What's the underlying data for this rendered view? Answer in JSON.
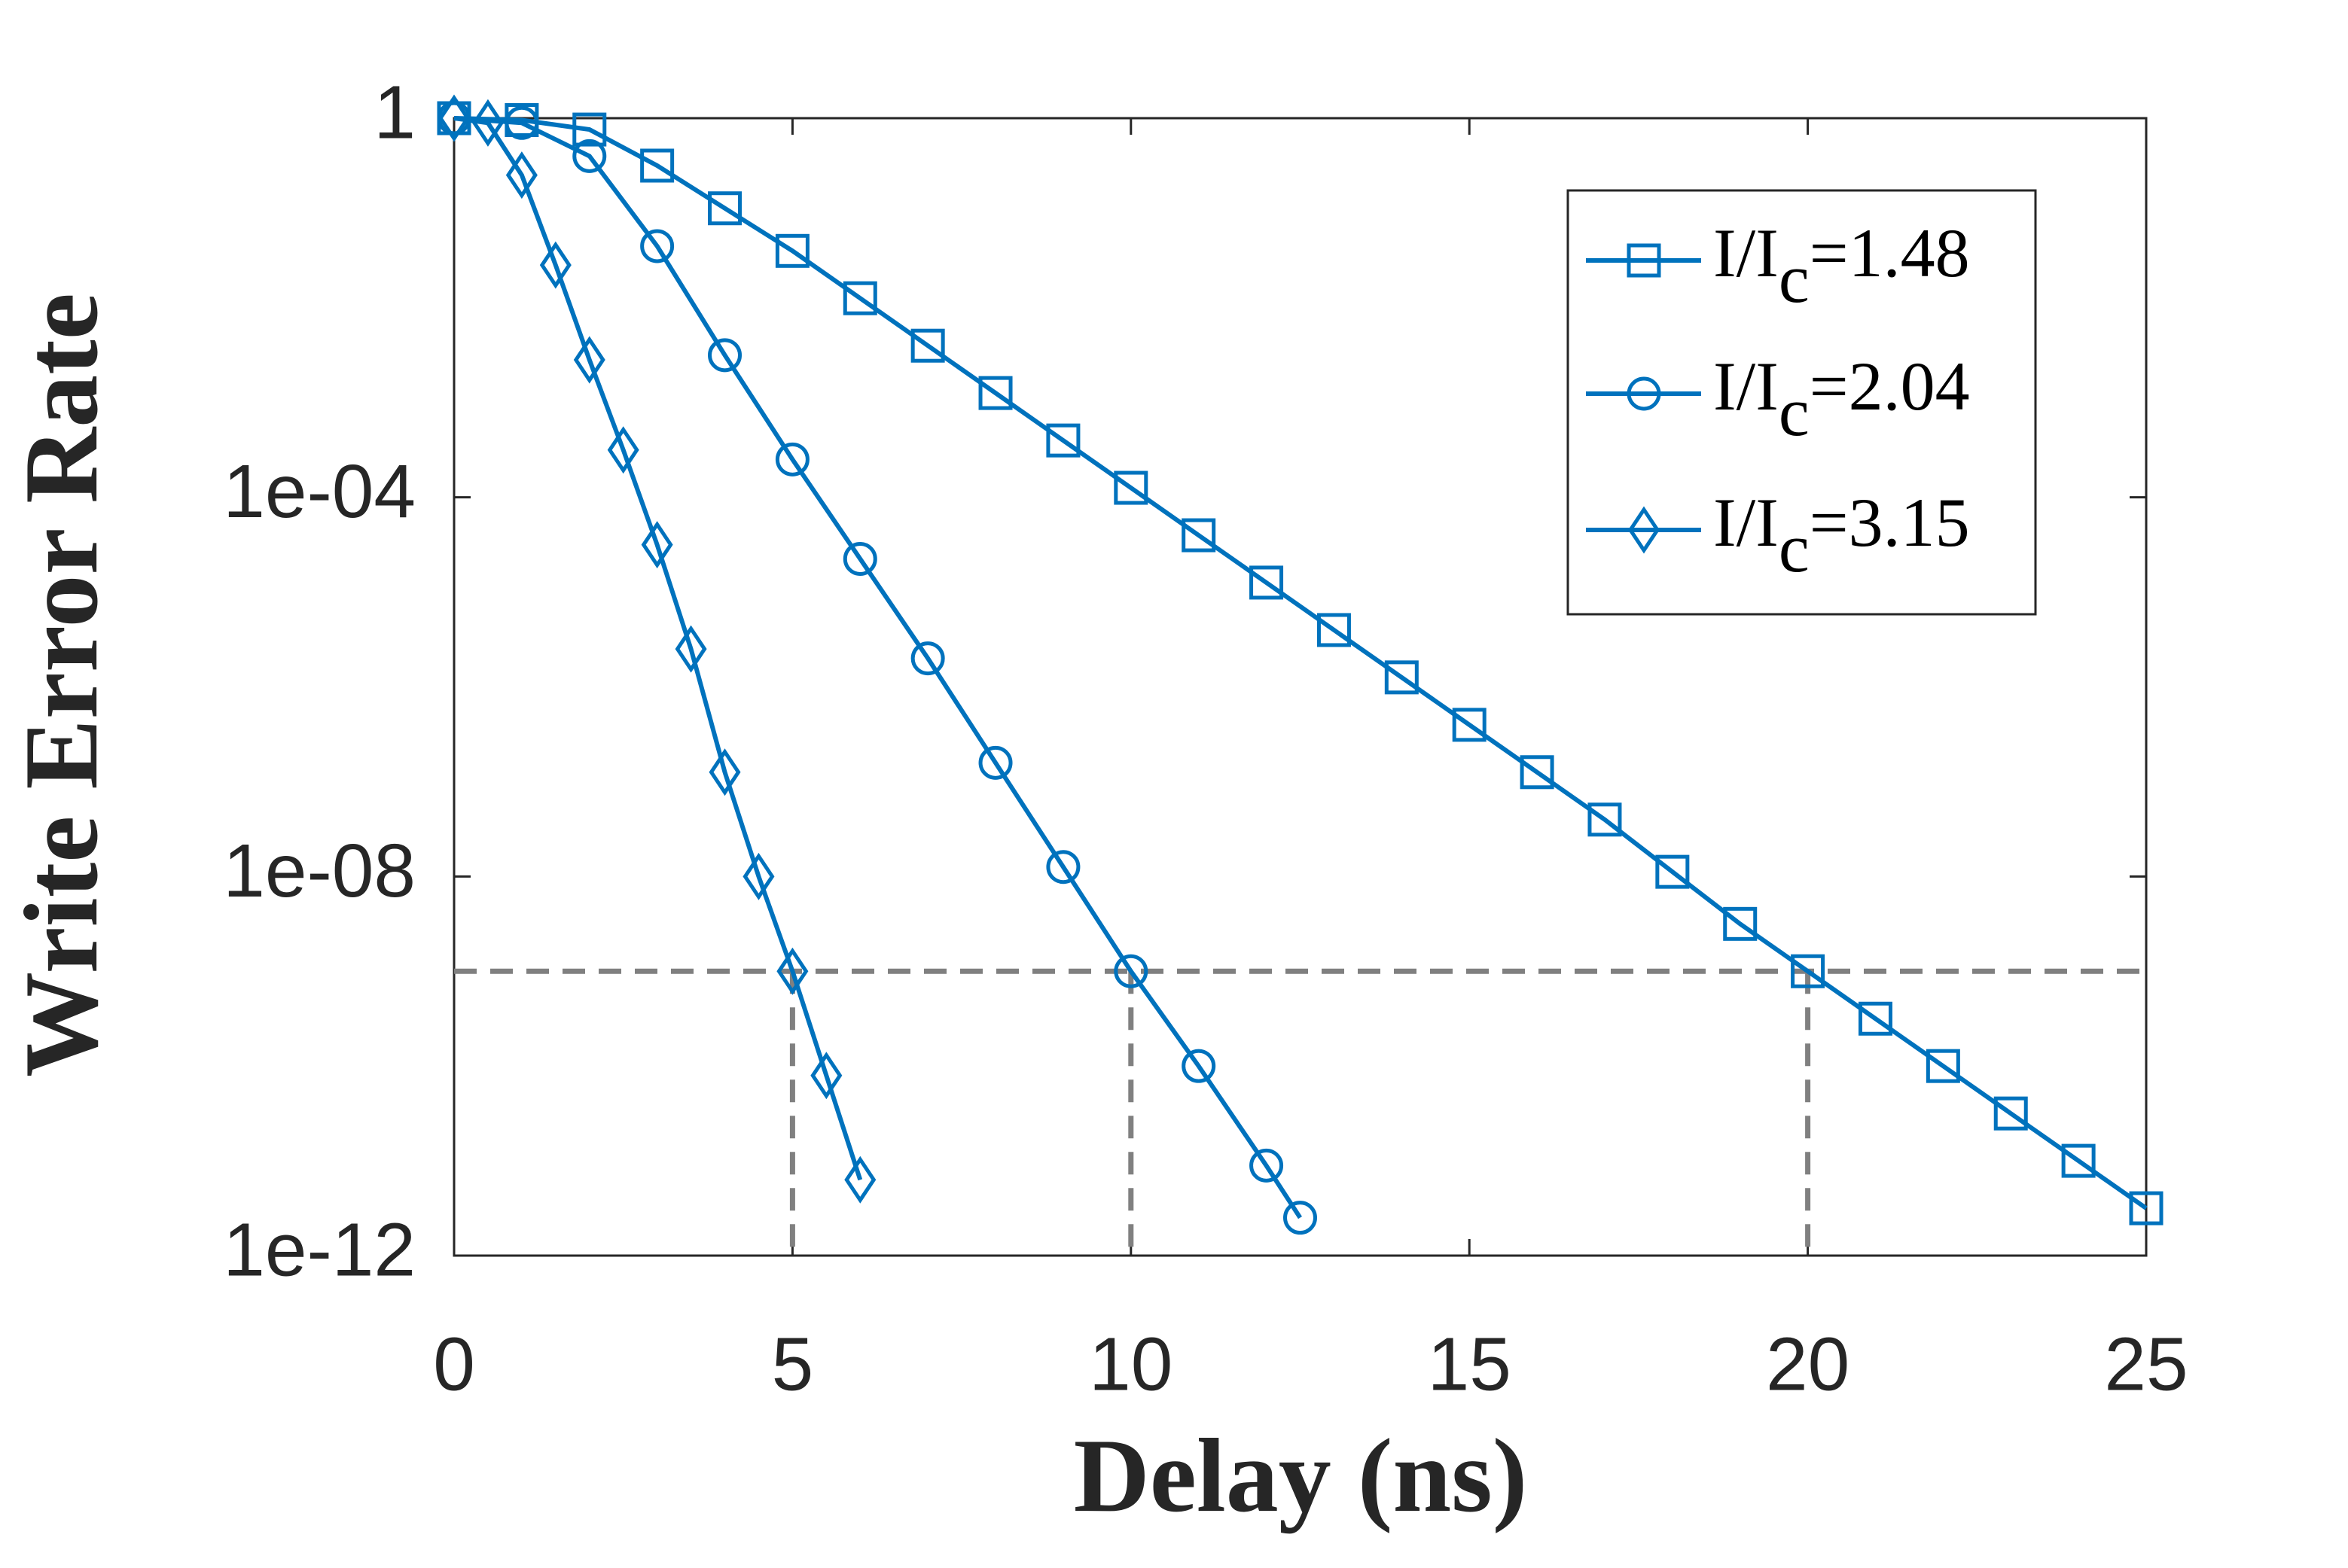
{
  "chart_data": {
    "type": "line",
    "xlabel": "Delay (ns)",
    "ylabel": "Write Error Rate",
    "xlim": [
      0,
      25
    ],
    "xticks": [
      0,
      5,
      10,
      15,
      20,
      25
    ],
    "ylim": [
      1e-12,
      1
    ],
    "yscale": "log",
    "yticks": [
      {
        "value": 1e-12,
        "label": "1e-12"
      },
      {
        "value": 1e-08,
        "label": "1e-08"
      },
      {
        "value": 0.0001,
        "label": "1e-04"
      },
      1
    ],
    "legend": "upper right",
    "series": [
      {
        "name": "I/Ic=1.48",
        "color": "#0072bd",
        "marker": "square",
        "x": [
          0,
          1,
          2,
          3,
          4,
          5,
          6,
          7,
          8,
          9,
          10,
          11,
          12,
          13,
          14,
          15,
          16,
          17,
          18,
          19,
          20,
          21,
          22,
          23,
          24,
          25
        ],
        "values": [
          1,
          0.955,
          0.759,
          0.316,
          0.112,
          0.0398,
          0.0126,
          0.00398,
          0.00126,
          0.000398,
          0.000126,
          3.98e-05,
          1.26e-05,
          3.98e-06,
          1.26e-06,
          3.98e-07,
          1.26e-07,
          3.98e-08,
          1.12e-08,
          3.16e-09,
          1e-09,
          3.16e-10,
          1e-10,
          3.16e-11,
          1e-11,
          3.16e-12
        ]
      },
      {
        "name": "I/Ic=2.04",
        "color": "#0072bd",
        "marker": "circle",
        "x": [
          0,
          1,
          2,
          3,
          4,
          5,
          6,
          7,
          8,
          9,
          10,
          11,
          12,
          12.5
        ],
        "values": [
          1,
          0.891,
          0.398,
          0.0447,
          0.00316,
          0.000251,
          2.24e-05,
          2e-06,
          1.58e-07,
          1.26e-08,
          1e-09,
          1e-10,
          8.91e-12,
          2.51e-12
        ]
      },
      {
        "name": "I/Ic=3.15",
        "color": "#0072bd",
        "marker": "diamond",
        "x": [
          0,
          0.5,
          1,
          1.5,
          2,
          2.5,
          3,
          3.5,
          4,
          4.5,
          5,
          5.5,
          6
        ],
        "values": [
          1,
          0.891,
          0.251,
          0.0282,
          0.00282,
          0.000316,
          3.16e-05,
          2.51e-06,
          1.26e-07,
          1e-08,
          1e-09,
          7.94e-11,
          6.31e-12
        ]
      }
    ],
    "reference_lines": {
      "y": 1e-09,
      "x": [
        5,
        10,
        20
      ],
      "color": "#808080"
    }
  }
}
